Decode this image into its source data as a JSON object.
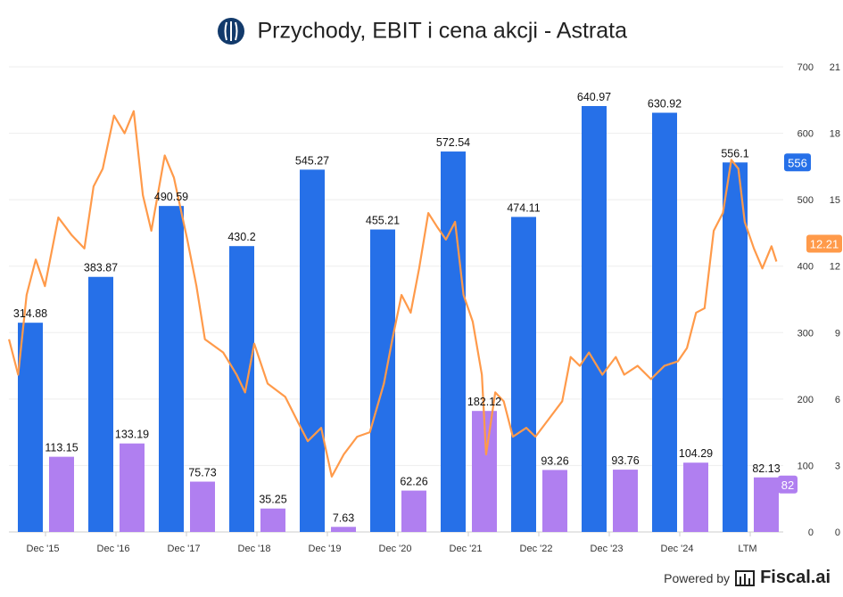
{
  "title": "Przychody, EBIT i cena akcji - Astrata",
  "footer": {
    "powered_by": "Powered by",
    "brand": "Fiscal.ai"
  },
  "colors": {
    "revenue": "#2670e8",
    "ebit": "#b07ff0",
    "price": "#ff9a4a",
    "logo": "#123a6b"
  },
  "chart_data": {
    "type": "bar",
    "title": "Przychody, EBIT i cena akcji - Astrata",
    "categories": [
      "Dec '15",
      "Dec '16",
      "Dec '17",
      "Dec '18",
      "Dec '19",
      "Dec '20",
      "Dec '21",
      "Dec '22",
      "Dec '23",
      "Dec '24",
      "LTM"
    ],
    "series": [
      {
        "key": "revenue",
        "values": [
          314.88,
          383.87,
          490.59,
          430.2,
          545.27,
          455.21,
          572.54,
          474.11,
          640.97,
          630.92,
          556.1
        ],
        "labels": [
          "314.88",
          "383.87",
          "490.59",
          "430.2",
          "545.27",
          "455.21",
          "572.54",
          "474.11",
          "640.97",
          "630.92",
          "556.1"
        ]
      },
      {
        "key": "ebit",
        "values": [
          113.15,
          133.19,
          75.73,
          35.25,
          7.63,
          62.26,
          182.12,
          93.26,
          93.76,
          104.29,
          82.13
        ],
        "labels": [
          "113.15",
          "133.19",
          "75.73",
          "35.25",
          "7.63",
          "62.26",
          "182.12",
          "93.26",
          "93.76",
          "104.29",
          "82.13"
        ]
      }
    ],
    "price": {
      "type": "line",
      "x": [
        2015.44,
        2015.57,
        2015.69,
        2015.82,
        2015.95,
        2016.14,
        2016.33,
        2016.51,
        2016.64,
        2016.77,
        2016.93,
        2017.08,
        2017.21,
        2017.34,
        2017.46,
        2017.65,
        2017.78,
        2017.97,
        2018.1,
        2018.22,
        2018.48,
        2018.67,
        2018.79,
        2018.92,
        2019.11,
        2019.36,
        2019.55,
        2019.68,
        2019.87,
        2020.02,
        2020.19,
        2020.38,
        2020.56,
        2020.76,
        2020.88,
        2021.01,
        2021.14,
        2021.26,
        2021.39,
        2021.51,
        2021.64,
        2021.77,
        2021.89,
        2022.02,
        2022.15,
        2022.21,
        2022.34,
        2022.46,
        2022.59,
        2022.78,
        2022.91,
        2023.1,
        2023.29,
        2023.41,
        2023.54,
        2023.67,
        2023.86,
        2024.05,
        2024.17,
        2024.36,
        2024.55,
        2024.74,
        2024.93,
        2025.06,
        2025.19,
        2025.31,
        2025.44,
        2025.57,
        2025.69,
        2025.79,
        2025.88,
        2026.01,
        2026.13,
        2026.26,
        2026.33
      ],
      "y": [
        8.7,
        7.1,
        10.7,
        12.3,
        11.1,
        14.2,
        13.4,
        12.8,
        15.6,
        16.4,
        18.8,
        18.0,
        19.0,
        15.2,
        13.6,
        17.0,
        16.0,
        13.2,
        11.1,
        8.7,
        8.1,
        7.1,
        6.3,
        8.5,
        6.7,
        6.1,
        4.9,
        4.1,
        4.7,
        2.5,
        3.5,
        4.3,
        4.5,
        6.7,
        8.7,
        10.7,
        9.9,
        11.9,
        14.4,
        13.8,
        13.2,
        14.0,
        10.7,
        9.5,
        7.1,
        3.5,
        6.3,
        5.9,
        4.3,
        4.7,
        4.3,
        5.1,
        5.9,
        7.9,
        7.5,
        8.1,
        7.1,
        7.9,
        7.1,
        7.5,
        6.9,
        7.5,
        7.7,
        8.3,
        9.9,
        10.1,
        13.6,
        14.4,
        16.8,
        16.4,
        14.0,
        12.8,
        11.9,
        12.9,
        12.21
      ]
    },
    "badges": {
      "revenue_last": "556",
      "ebit_last": "82",
      "price_last": "12.21"
    },
    "y_left": {
      "ylim": [
        0,
        700
      ],
      "ticks": [
        "0",
        "100",
        "200",
        "300",
        "400",
        "500",
        "600",
        "700"
      ]
    },
    "y_right": {
      "ylim": [
        0,
        21
      ],
      "ticks": [
        "0",
        "3",
        "6",
        "9",
        "12",
        "15",
        "18",
        "21"
      ]
    },
    "grid": true,
    "legend": "none"
  }
}
